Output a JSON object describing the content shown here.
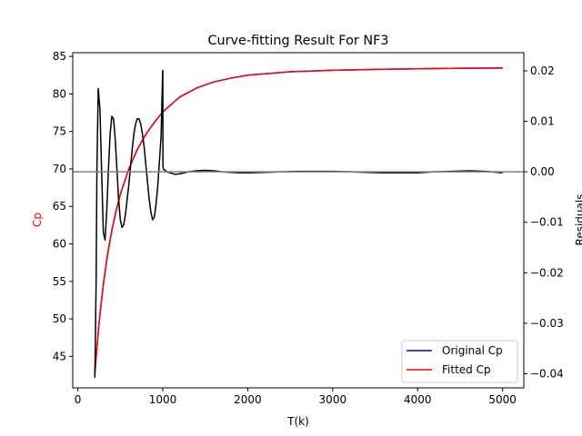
{
  "chart_data": {
    "type": "line",
    "title": "Curve-fitting Result For NF3",
    "xlabel": "T(k)",
    "ylabel_left": "Cp",
    "ylabel_right": "Residuals",
    "xlim": [
      -60,
      5250
    ],
    "ylim_left": [
      40.8,
      85.5
    ],
    "ylim_right": [
      -0.0428,
      0.0236
    ],
    "x_ticks": [
      "0",
      "1000",
      "2000",
      "3000",
      "4000",
      "5000"
    ],
    "x_tick_values": [
      0,
      1000,
      2000,
      3000,
      4000,
      5000
    ],
    "y_left_ticks": [
      "45",
      "50",
      "55",
      "60",
      "65",
      "70",
      "75",
      "80",
      "85"
    ],
    "y_left_tick_values": [
      45,
      50,
      55,
      60,
      65,
      70,
      75,
      80,
      85
    ],
    "y_right_ticks": [
      "−0.04",
      "−0.03",
      "−0.02",
      "−0.01",
      "0.00",
      "0.01",
      "0.02"
    ],
    "y_right_tick_values": [
      -0.04,
      -0.03,
      -0.02,
      -0.01,
      0.0,
      0.01,
      0.02
    ],
    "zero_line": 0.0,
    "grid": false,
    "legend_position": "bottom-right",
    "series": [
      {
        "name": "Original Cp",
        "axis": "left",
        "color": "#0000cc",
        "x": [
          200,
          250,
          300,
          350,
          400,
          450,
          500,
          600,
          700,
          800,
          900,
          1000,
          1200,
          1400,
          1600,
          1800,
          2000,
          2500,
          3000,
          3500,
          4000,
          4500,
          5000
        ],
        "values": [
          42.8,
          49.5,
          54.6,
          58.6,
          61.8,
          64.4,
          66.6,
          70.0,
          72.6,
          74.6,
          76.2,
          77.6,
          79.6,
          80.8,
          81.6,
          82.1,
          82.5,
          82.95,
          83.15,
          83.27,
          83.35,
          83.42,
          83.46
        ]
      },
      {
        "name": "Fitted Cp",
        "axis": "left",
        "color": "#ff0000",
        "x": [
          200,
          250,
          300,
          350,
          400,
          450,
          500,
          600,
          700,
          800,
          900,
          1000,
          1200,
          1400,
          1600,
          1800,
          2000,
          2500,
          3000,
          3500,
          4000,
          4500,
          5000
        ],
        "values": [
          42.8,
          49.5,
          54.6,
          58.6,
          61.8,
          64.4,
          66.6,
          70.0,
          72.6,
          74.6,
          76.2,
          77.6,
          79.6,
          80.8,
          81.6,
          82.1,
          82.5,
          82.95,
          83.15,
          83.27,
          83.35,
          83.42,
          83.46
        ]
      },
      {
        "axis": "right",
        "color": "#000000",
        "x": [
          200,
          215,
          225,
          240,
          260,
          280,
          300,
          320,
          340,
          360,
          380,
          400,
          420,
          440,
          460,
          480,
          500,
          520,
          540,
          560,
          580,
          600,
          620,
          640,
          660,
          680,
          700,
          720,
          740,
          760,
          780,
          800,
          820,
          840,
          860,
          880,
          900,
          920,
          940,
          960,
          980,
          990,
          998,
          1000,
          1002,
          1010,
          1050,
          1100,
          1150,
          1200,
          1300,
          1400,
          1500,
          1600,
          1700,
          1800,
          1900,
          2000,
          2200,
          2400,
          2600,
          2800,
          3000,
          3200,
          3400,
          3600,
          3800,
          4000,
          4200,
          4400,
          4600,
          4800,
          5000
        ],
        "values": [
          -0.0408,
          -0.022,
          0.001,
          0.0165,
          0.0125,
          0.0,
          -0.012,
          -0.0135,
          -0.008,
          0.0005,
          0.0075,
          0.011,
          0.0105,
          0.0065,
          0.0005,
          -0.0055,
          -0.0095,
          -0.011,
          -0.0105,
          -0.0085,
          -0.0055,
          -0.0025,
          0.001,
          0.0045,
          0.0075,
          0.0095,
          0.0105,
          0.0105,
          0.0095,
          0.0075,
          0.005,
          0.0015,
          -0.002,
          -0.0055,
          -0.008,
          -0.0095,
          -0.009,
          -0.0065,
          -0.003,
          0.002,
          0.007,
          0.014,
          0.0196,
          0.0201,
          0.001,
          0.0005,
          0.0,
          -0.0003,
          -0.0005,
          -0.0004,
          0.0,
          0.0002,
          0.0003,
          0.0002,
          0.0,
          -0.0001,
          -0.0002,
          -0.0002,
          -0.0001,
          0.0,
          0.0001,
          0.0001,
          0.0001,
          0.0,
          -0.0001,
          -0.0002,
          -0.0002,
          -0.0002,
          0.0,
          0.0001,
          0.0002,
          0.0001,
          -0.0002
        ]
      }
    ]
  }
}
